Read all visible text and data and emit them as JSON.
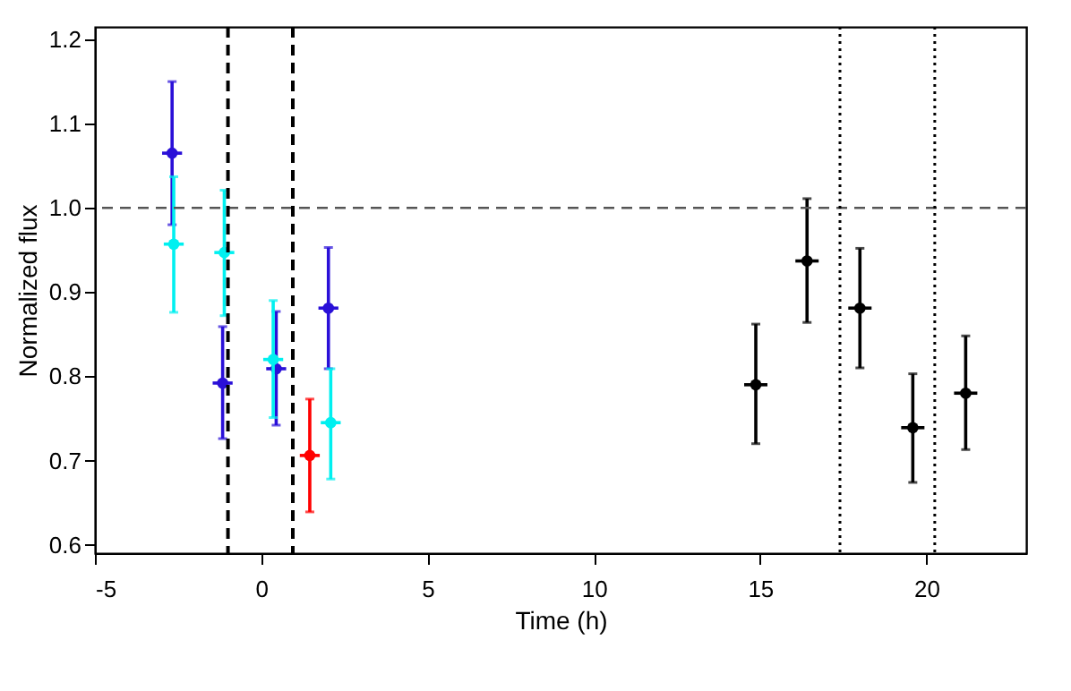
{
  "chart_data": {
    "type": "scatter",
    "xlabel": "Time (h)",
    "ylabel": "Normalized flux",
    "xlim": [
      -5,
      23
    ],
    "ylim": [
      0.59,
      1.215
    ],
    "xticks": [
      -5,
      0,
      5,
      10,
      15,
      20
    ],
    "yticks": [
      {
        "value": 0.6,
        "label": "0.6"
      },
      {
        "value": 0.7,
        "label": "0.7"
      },
      {
        "value": 0.8,
        "label": "0.8"
      },
      {
        "value": 0.9,
        "label": "0.9"
      },
      {
        "value": 1.0,
        "label": "1.0"
      },
      {
        "value": 1.1,
        "label": "1.1"
      },
      {
        "value": 1.2,
        "label": "1.2"
      }
    ],
    "grid": false,
    "marker": "circle",
    "series": [
      {
        "color": "#2a10d8",
        "x": [
          -2.68,
          -1.16,
          0.45,
          2.02
        ],
        "values": [
          1.065,
          0.792,
          0.809,
          0.881
        ],
        "errors": [
          [
            0.98,
            1.15
          ],
          [
            0.726,
            0.859
          ],
          [
            0.742,
            0.877
          ],
          [
            0.809,
            0.953
          ]
        ],
        "xerrors": [
          0.3,
          0.3,
          0.3,
          0.3
        ]
      },
      {
        "color": "#00f0f0",
        "x": [
          -2.63,
          -1.11,
          0.36,
          2.09
        ],
        "values": [
          0.957,
          0.947,
          0.82,
          0.745
        ],
        "errors": [
          [
            0.876,
            1.037
          ],
          [
            0.872,
            1.021
          ],
          [
            0.751,
            0.89
          ],
          [
            0.678,
            0.809
          ]
        ],
        "xerrors": [
          0.3,
          0.3,
          0.3,
          0.3
        ]
      },
      {
        "color": "#ff0000",
        "x": [
          1.46
        ],
        "values": [
          0.706
        ],
        "errors": [
          [
            0.639,
            0.773
          ]
        ],
        "xerrors": [
          0.3
        ]
      },
      {
        "color": "#000000",
        "x": [
          14.87,
          16.41,
          18.0,
          19.59,
          21.18
        ],
        "values": [
          0.79,
          0.937,
          0.881,
          0.739,
          0.78
        ],
        "errors": [
          [
            0.72,
            0.862
          ],
          [
            0.864,
            1.011
          ],
          [
            0.81,
            0.952
          ],
          [
            0.674,
            0.803
          ],
          [
            0.713,
            0.848
          ]
        ],
        "xerrors": [
          0.35,
          0.35,
          0.35,
          0.35,
          0.35
        ]
      }
    ],
    "ref_lines": [
      {
        "axis": "y",
        "value": 1.0,
        "color": "#555555",
        "line_style": "dashed"
      },
      {
        "axis": "x",
        "value": -1.0,
        "color": "#000000",
        "line_style": "dashed"
      },
      {
        "axis": "x",
        "value": 0.95,
        "color": "#000000",
        "line_style": "dashed"
      },
      {
        "axis": "x",
        "value": 17.4,
        "color": "#000000",
        "line_style": "dotted"
      },
      {
        "axis": "x",
        "value": 20.25,
        "color": "#000000",
        "line_style": "dotted"
      }
    ]
  }
}
